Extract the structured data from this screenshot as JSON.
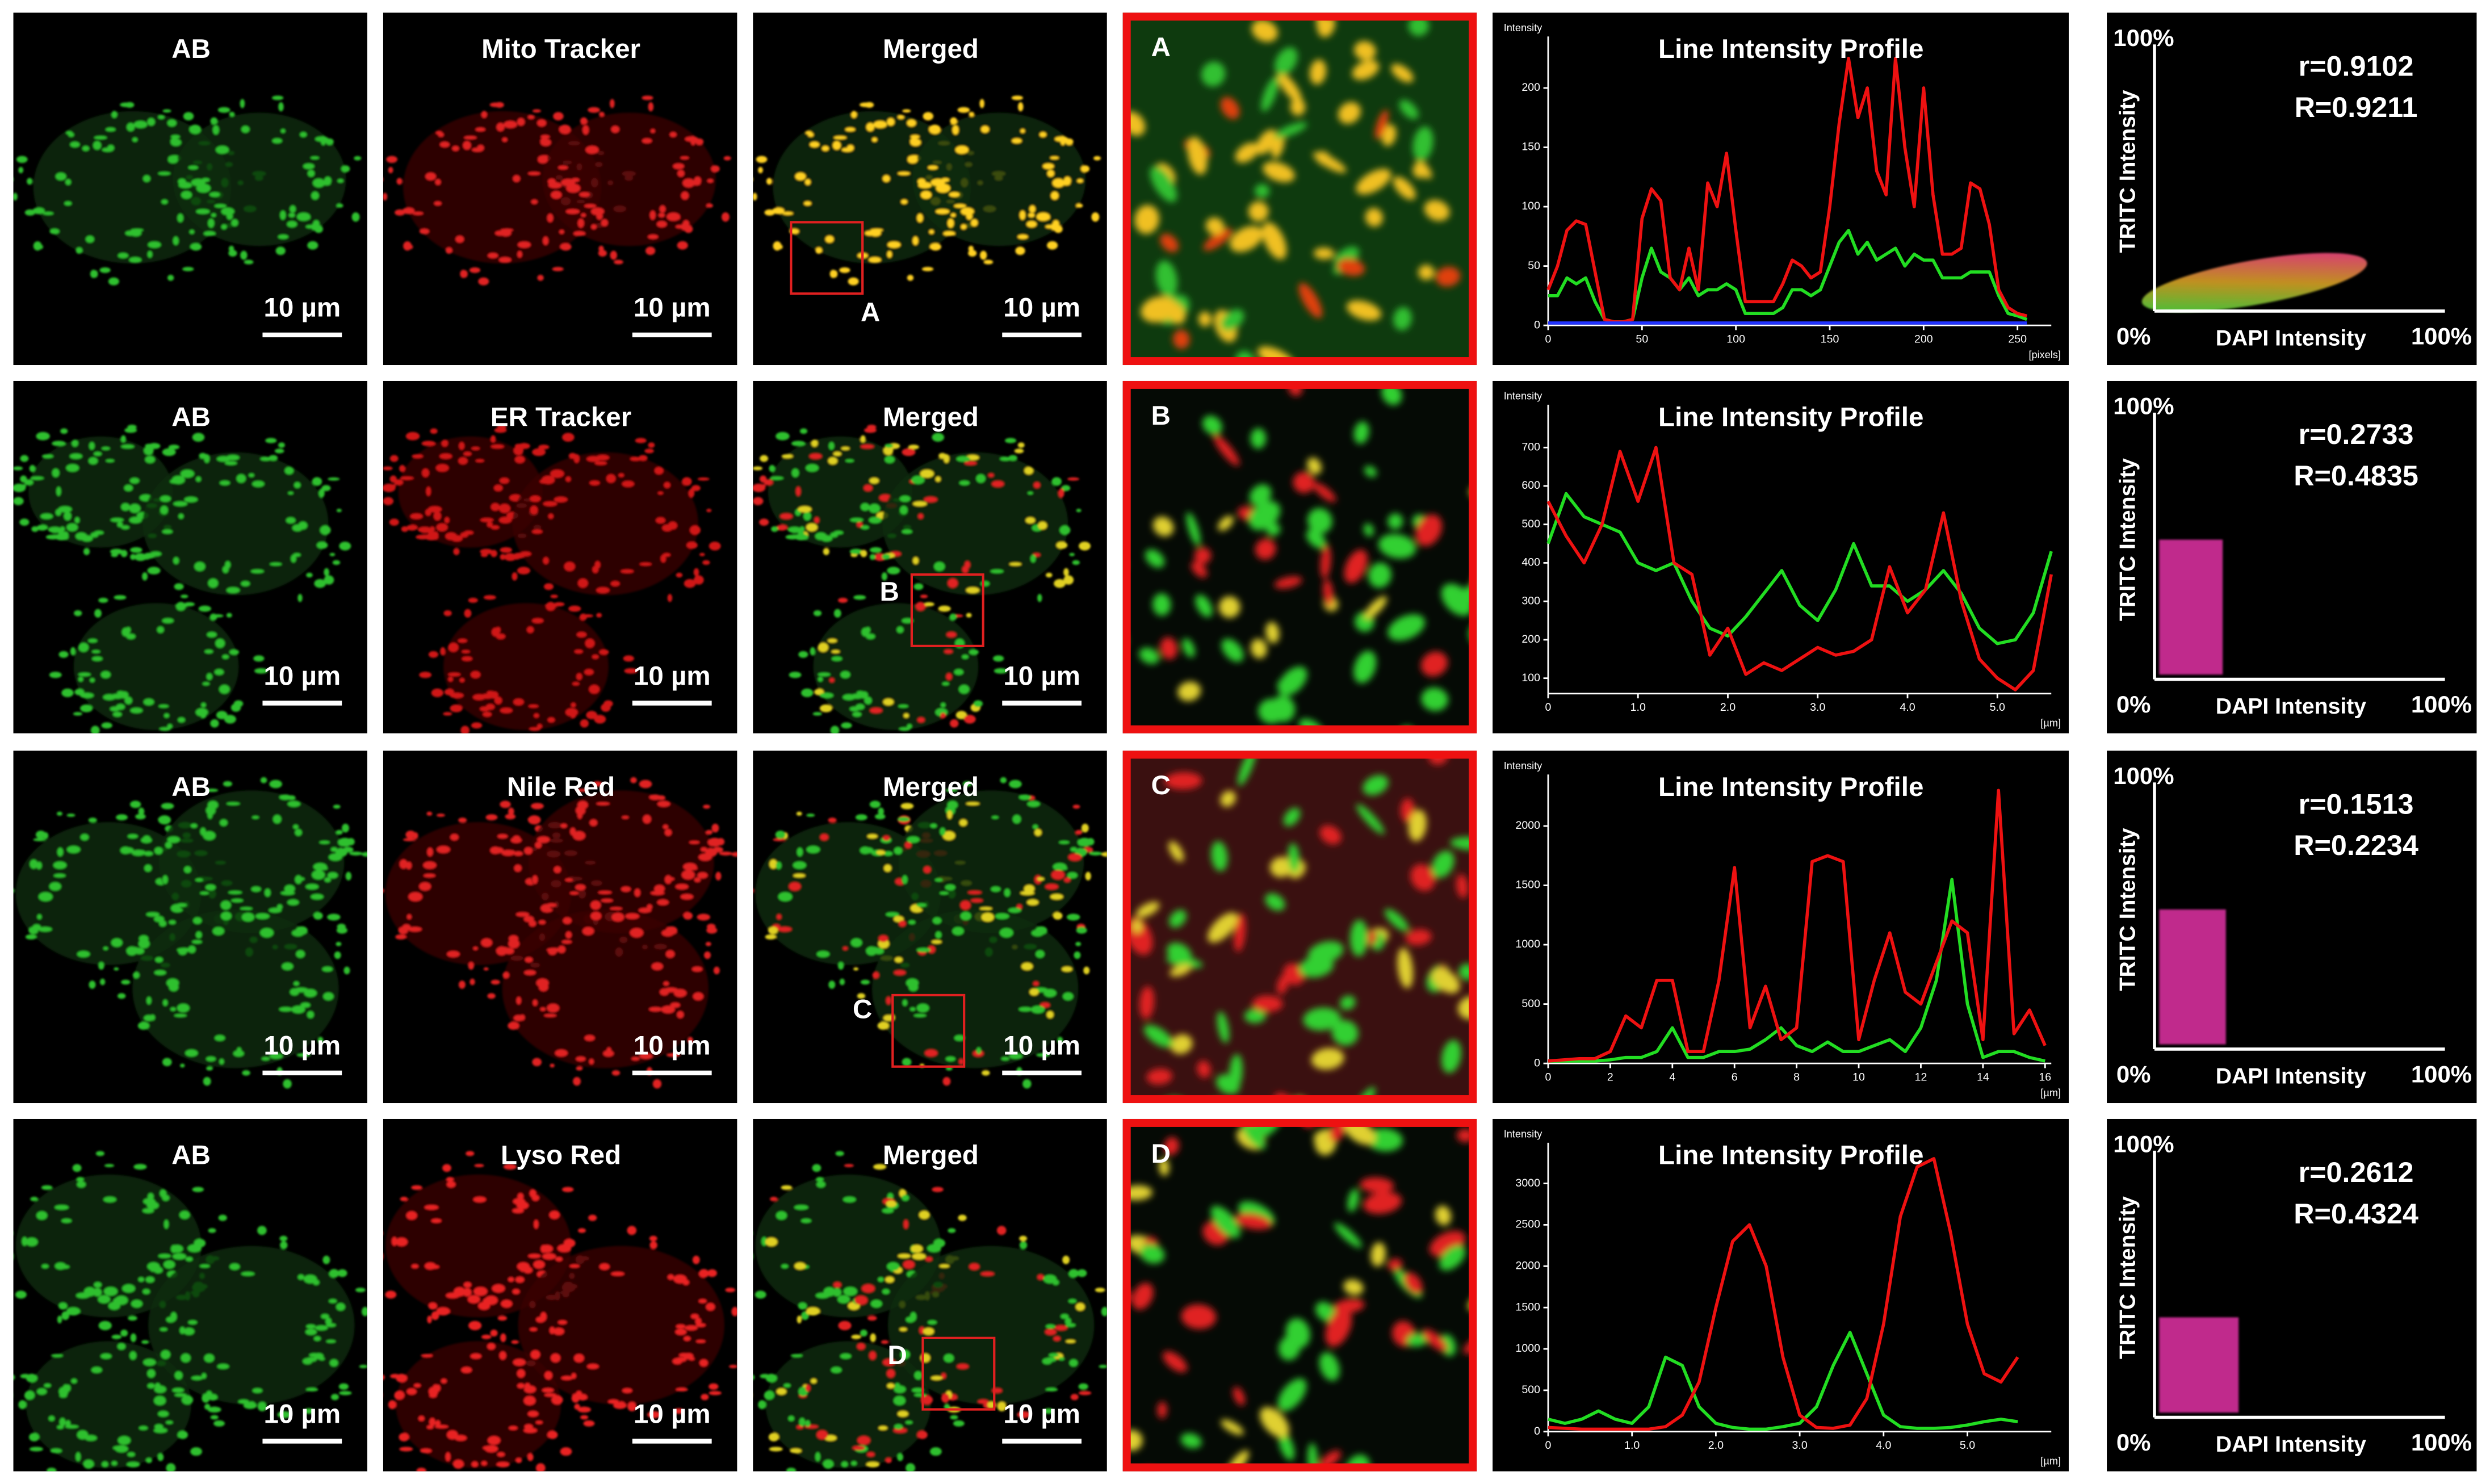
{
  "rows": [
    {
      "panel_labels": [
        "AB",
        "Mito Tracker",
        "Merged"
      ],
      "scale_bar": "10 µm",
      "roi_label": "A",
      "zoom_label": "A",
      "scatter": {
        "y_max": "100%",
        "origin": "0%",
        "x_max": "100%",
        "x_label": "DAPI Intensity",
        "y_label": "TRITC Intensity",
        "r": "r=0.9102",
        "R": "R=0.9211"
      }
    },
    {
      "panel_labels": [
        "AB",
        "ER Tracker",
        "Merged"
      ],
      "scale_bar": "10 µm",
      "roi_label": "B",
      "zoom_label": "B",
      "scatter": {
        "y_max": "100%",
        "origin": "0%",
        "x_max": "100%",
        "x_label": "DAPI Intensity",
        "y_label": "TRITC Intensity",
        "r": "r=0.2733",
        "R": "R=0.4835"
      }
    },
    {
      "panel_labels": [
        "AB",
        "Nile Red",
        "Merged"
      ],
      "scale_bar": "10 µm",
      "roi_label": "C",
      "zoom_label": "C",
      "scatter": {
        "y_max": "100%",
        "origin": "0%",
        "x_max": "100%",
        "x_label": "DAPI Intensity",
        "y_label": "TRITC Intensity",
        "r": "r=0.1513",
        "R": "R=0.2234"
      }
    },
    {
      "panel_labels": [
        "AB",
        "Lyso Red",
        "Merged"
      ],
      "scale_bar": "10 µm",
      "roi_label": "D",
      "zoom_label": "D",
      "scatter": {
        "y_max": "100%",
        "origin": "0%",
        "x_max": "100%",
        "x_label": "DAPI Intensity",
        "y_label": "TRITC Intensity",
        "r": "r=0.2612",
        "R": "R=0.4324"
      }
    }
  ],
  "chart_data": [
    {
      "type": "line",
      "title": "Line Intensity Profile",
      "y_label": "Intensity",
      "x_label": "[pixels]",
      "x": [
        0,
        5,
        10,
        15,
        20,
        25,
        30,
        35,
        40,
        45,
        50,
        55,
        60,
        65,
        70,
        75,
        80,
        85,
        90,
        95,
        100,
        105,
        110,
        115,
        120,
        125,
        130,
        135,
        140,
        145,
        150,
        155,
        160,
        165,
        170,
        175,
        180,
        185,
        190,
        195,
        200,
        205,
        210,
        215,
        220,
        225,
        230,
        235,
        240,
        245,
        250,
        255
      ],
      "xlim": [
        0,
        268
      ],
      "ylim": [
        0,
        230
      ],
      "xticks": [
        0,
        50,
        100,
        150,
        200,
        250
      ],
      "yticks": [
        0,
        50,
        100,
        150,
        200
      ],
      "series": [
        {
          "color": "#22dd22",
          "values": [
            25,
            25,
            40,
            35,
            40,
            20,
            5,
            3,
            3,
            5,
            40,
            65,
            45,
            40,
            30,
            40,
            25,
            30,
            30,
            35,
            30,
            10,
            10,
            10,
            10,
            15,
            30,
            30,
            25,
            30,
            50,
            70,
            80,
            60,
            70,
            55,
            60,
            65,
            50,
            60,
            55,
            55,
            40,
            40,
            40,
            45,
            45,
            45,
            25,
            10,
            8,
            5
          ]
        },
        {
          "color": "#ee1111",
          "values": [
            30,
            50,
            80,
            88,
            85,
            45,
            5,
            3,
            3,
            5,
            90,
            115,
            105,
            40,
            30,
            65,
            30,
            120,
            100,
            145,
            80,
            20,
            20,
            20,
            20,
            35,
            55,
            50,
            40,
            45,
            100,
            170,
            225,
            175,
            200,
            130,
            110,
            225,
            150,
            100,
            200,
            110,
            60,
            60,
            65,
            120,
            115,
            85,
            30,
            15,
            10,
            8
          ]
        },
        {
          "color": "#2233ff",
          "values": [
            2,
            2,
            2,
            2,
            2,
            2,
            2,
            2,
            2,
            2,
            2,
            2,
            2,
            2,
            2,
            2,
            2,
            2,
            2,
            2,
            2,
            2,
            2,
            2,
            2,
            2,
            2,
            2,
            2,
            2,
            2,
            2,
            2,
            2,
            2,
            2,
            2,
            2,
            2,
            2,
            2,
            2,
            2,
            2,
            2,
            2,
            2,
            2,
            2,
            2,
            2,
            2
          ]
        }
      ]
    },
    {
      "type": "line",
      "title": "Line Intensity Profile",
      "y_label": "Intensity",
      "x_label": "[µm]",
      "x": [
        0,
        0.2,
        0.4,
        0.6,
        0.8,
        1,
        1.2,
        1.4,
        1.6,
        1.8,
        2,
        2.2,
        2.4,
        2.6,
        2.8,
        3,
        3.2,
        3.4,
        3.6,
        3.8,
        4,
        4.2,
        4.4,
        4.6,
        4.8,
        5,
        5.2,
        5.4,
        5.6
      ],
      "xlim": [
        0,
        5.6
      ],
      "ylim": [
        60,
        770
      ],
      "xticks": [
        0,
        {
          "value": 1,
          "label": "1.0"
        },
        {
          "value": 2,
          "label": "2.0"
        },
        {
          "value": 3,
          "label": "3.0"
        },
        {
          "value": 4,
          "label": "4.0"
        },
        {
          "value": 5,
          "label": "5.0"
        }
      ],
      "yticks": [
        100,
        200,
        300,
        400,
        500,
        600,
        700
      ],
      "series": [
        {
          "color": "#22dd22",
          "values": [
            450,
            580,
            520,
            500,
            480,
            400,
            380,
            400,
            300,
            230,
            210,
            260,
            320,
            380,
            290,
            250,
            330,
            450,
            340,
            340,
            300,
            330,
            380,
            320,
            230,
            190,
            200,
            270,
            430
          ]
        },
        {
          "color": "#ee1111",
          "values": [
            560,
            470,
            400,
            500,
            690,
            560,
            700,
            400,
            370,
            160,
            230,
            110,
            140,
            120,
            150,
            180,
            160,
            170,
            200,
            390,
            270,
            330,
            530,
            300,
            150,
            100,
            70,
            120,
            370
          ]
        }
      ]
    },
    {
      "type": "line",
      "title": "Line Intensity Profile",
      "y_label": "Intensity",
      "x_label": "[µm]",
      "x": [
        0,
        0.5,
        1,
        1.5,
        2,
        2.5,
        3,
        3.5,
        4,
        4.5,
        5,
        5.5,
        6,
        6.5,
        7,
        7.5,
        8,
        8.5,
        9,
        9.5,
        10,
        10.5,
        11,
        11.5,
        12,
        12.5,
        13,
        13.5,
        14,
        14.5,
        15,
        15.5,
        16
      ],
      "xlim": [
        0,
        16.2
      ],
      "ylim": [
        0,
        2300
      ],
      "xticks": [
        0,
        2,
        4,
        6,
        8,
        10,
        12,
        14,
        16
      ],
      "yticks": [
        0,
        500,
        1000,
        1500,
        2000
      ],
      "series": [
        {
          "color": "#22dd22",
          "values": [
            20,
            20,
            20,
            20,
            30,
            50,
            50,
            100,
            300,
            50,
            50,
            100,
            100,
            120,
            200,
            300,
            150,
            100,
            180,
            100,
            100,
            150,
            200,
            100,
            300,
            700,
            1550,
            500,
            50,
            100,
            100,
            50,
            20
          ]
        },
        {
          "color": "#ee1111",
          "values": [
            20,
            30,
            40,
            40,
            100,
            400,
            300,
            700,
            700,
            100,
            100,
            700,
            1650,
            300,
            650,
            200,
            300,
            1700,
            1750,
            1700,
            200,
            700,
            1100,
            600,
            500,
            850,
            1200,
            1100,
            200,
            2300,
            250,
            450,
            150
          ]
        }
      ]
    },
    {
      "type": "line",
      "title": "Line Intensity Profile",
      "y_label": "Intensity",
      "x_label": "[µm]",
      "x": [
        0,
        0.2,
        0.4,
        0.6,
        0.8,
        1,
        1.2,
        1.4,
        1.6,
        1.8,
        2,
        2.2,
        2.4,
        2.6,
        2.8,
        3,
        3.2,
        3.4,
        3.6,
        3.8,
        4,
        4.2,
        4.4,
        4.6,
        4.8,
        5,
        5.2,
        5.4,
        5.6
      ],
      "xlim": [
        0,
        6
      ],
      "ylim": [
        0,
        3300
      ],
      "xticks": [
        0,
        {
          "value": 1,
          "label": "1.0"
        },
        {
          "value": 2,
          "label": "2.0"
        },
        {
          "value": 3,
          "label": "3.0"
        },
        {
          "value": 4,
          "label": "4.0"
        },
        {
          "value": 5,
          "label": "5.0"
        }
      ],
      "yticks": [
        0,
        500,
        1000,
        1500,
        2000,
        2500,
        3000
      ],
      "series": [
        {
          "color": "#22dd22",
          "values": [
            150,
            100,
            150,
            250,
            150,
            100,
            300,
            900,
            800,
            300,
            100,
            50,
            30,
            30,
            60,
            100,
            300,
            800,
            1200,
            700,
            200,
            60,
            40,
            40,
            50,
            80,
            120,
            150,
            120
          ]
        },
        {
          "color": "#ee1111",
          "values": [
            50,
            40,
            30,
            30,
            30,
            30,
            30,
            60,
            200,
            600,
            1500,
            2300,
            2500,
            2000,
            900,
            200,
            50,
            40,
            80,
            400,
            1300,
            2600,
            3200,
            3300,
            2400,
            1300,
            700,
            600,
            900
          ]
        }
      ]
    }
  ]
}
